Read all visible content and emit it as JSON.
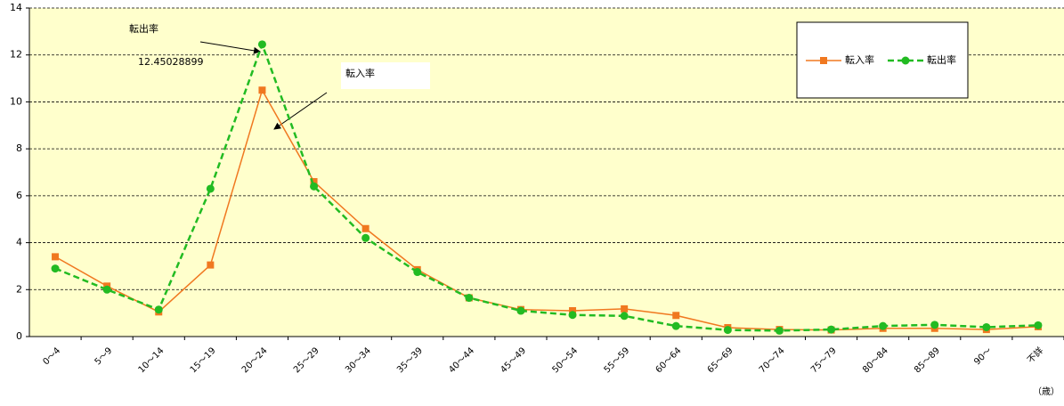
{
  "chart_data": {
    "type": "line",
    "categories": [
      "0～4",
      "5～9",
      "10～14",
      "15～19",
      "20～24",
      "25～29",
      "30～34",
      "35～39",
      "40～44",
      "45～49",
      "50～54",
      "55～59",
      "60～64",
      "65～69",
      "70～74",
      "75～79",
      "80～84",
      "85～89",
      "90～",
      "不詳"
    ],
    "series": [
      {
        "name": "転入率",
        "color": "#f07820",
        "marker": "square",
        "dashed": false,
        "values": [
          3.4,
          2.15,
          1.05,
          3.05,
          10.5,
          6.6,
          4.6,
          2.85,
          1.65,
          1.15,
          1.1,
          1.18,
          0.9,
          0.38,
          0.3,
          0.28,
          0.35,
          0.35,
          0.3,
          0.42
        ]
      },
      {
        "name": "転出率",
        "color": "#22bb22",
        "marker": "circle",
        "dashed": true,
        "values": [
          2.9,
          2.0,
          1.15,
          6.3,
          12.45028899,
          6.4,
          4.2,
          2.75,
          1.65,
          1.1,
          0.92,
          0.88,
          0.45,
          0.28,
          0.25,
          0.3,
          0.45,
          0.5,
          0.4,
          0.48
        ]
      }
    ],
    "ylim": [
      0,
      14
    ],
    "yticks": [
      0,
      2,
      4,
      6,
      8,
      10,
      12,
      14
    ],
    "grid": true,
    "legend": "upper right",
    "annotations": [
      "転出率",
      "12.45028899",
      "転入率"
    ],
    "x_unit": "（歳）"
  }
}
